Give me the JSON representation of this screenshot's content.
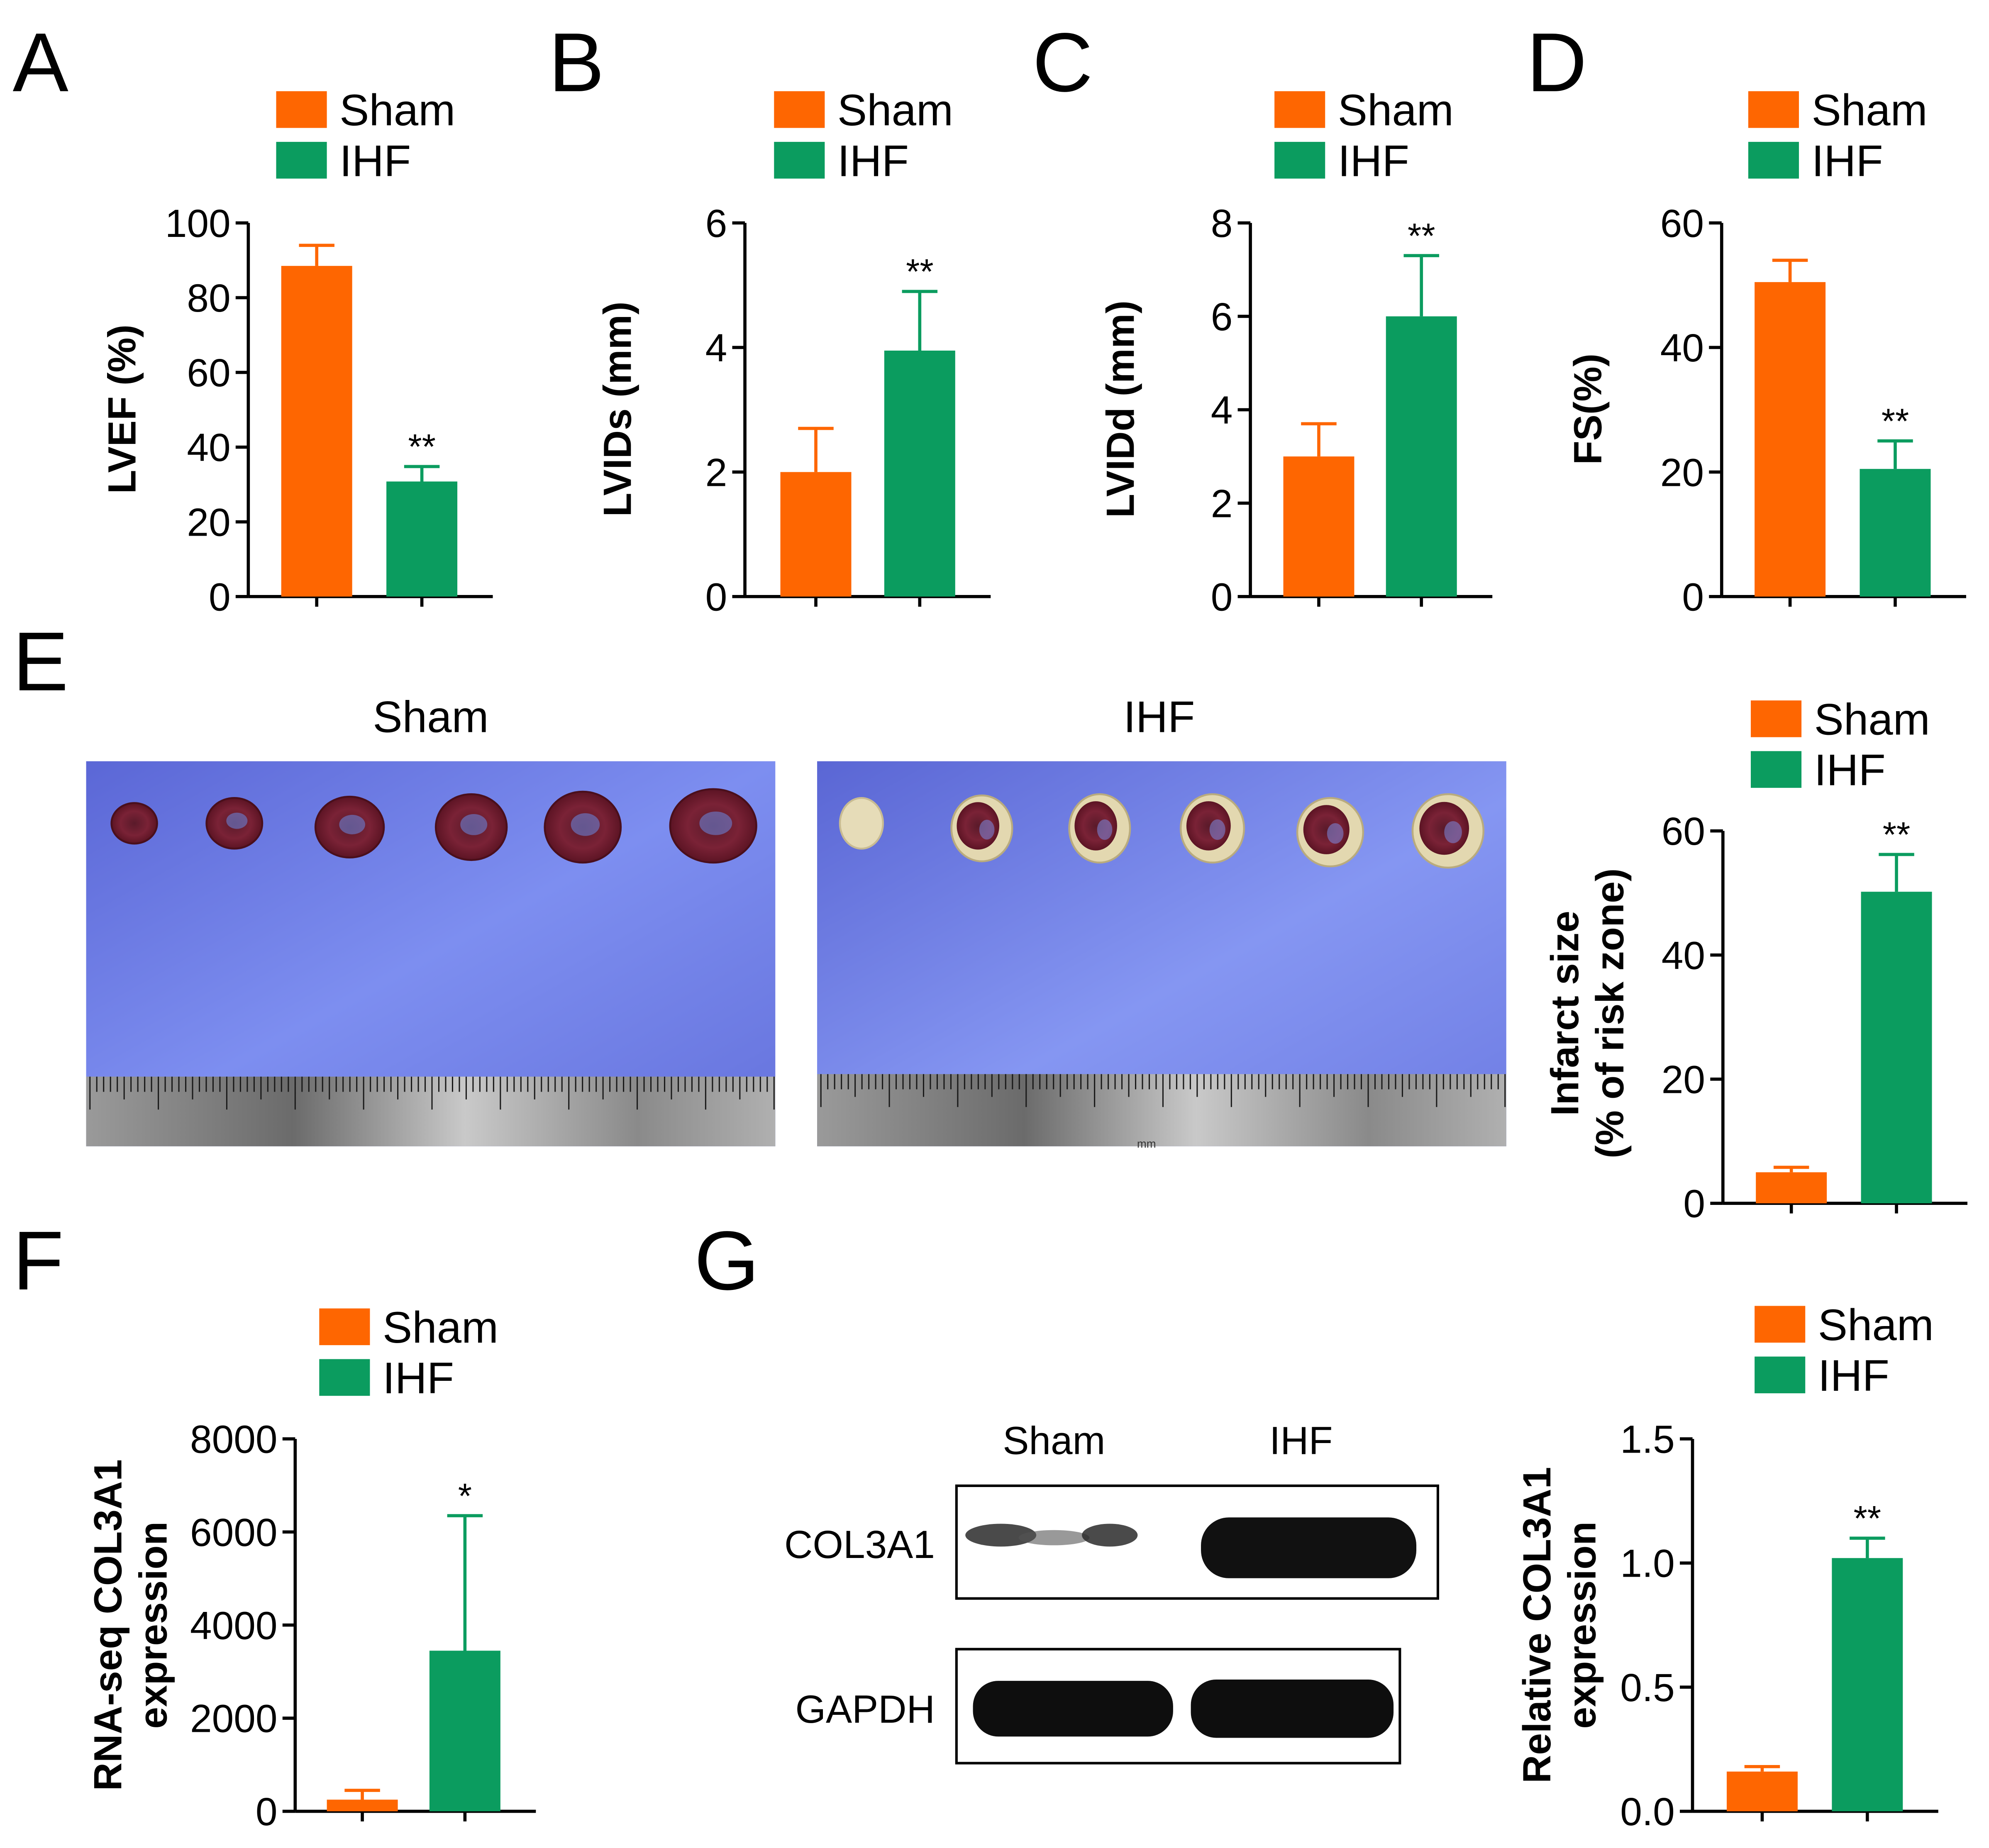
{
  "colors": {
    "sham": "#fe6601",
    "ihf": "#0b9c5f",
    "axis": "#000000"
  },
  "panels": {
    "A": "A",
    "B": "B",
    "C": "C",
    "D": "D",
    "E": "E",
    "F": "F",
    "G": "G"
  },
  "legend": {
    "sham": "Sham",
    "ihf": "IHF"
  },
  "photos": {
    "sham_title": "Sham",
    "ihf_title": "IHF",
    "ruler_mark": "mm"
  },
  "blot": {
    "col_sham": "Sham",
    "col_ihf": "IHF",
    "row1": "COL3A1",
    "row2": "GAPDH"
  },
  "chart_data": [
    {
      "id": "A",
      "type": "bar",
      "categories": [
        "Sham",
        "IHF"
      ],
      "values": [
        88.5,
        30.8
      ],
      "errors": [
        5.5,
        4.0
      ],
      "ylabel": "LVEF (%)",
      "ylim": [
        0,
        100
      ],
      "yticks": [
        "0",
        "20",
        "40",
        "60",
        "80",
        "100"
      ],
      "significance": [
        "",
        "**"
      ]
    },
    {
      "id": "B",
      "type": "bar",
      "categories": [
        "Sham",
        "IHF"
      ],
      "values": [
        2.0,
        3.95
      ],
      "errors": [
        0.7,
        0.95
      ],
      "ylabel": "LVIDs (mm)",
      "ylim": [
        0,
        6
      ],
      "yticks": [
        "0",
        "2",
        "4",
        "6"
      ],
      "significance": [
        "",
        "**"
      ]
    },
    {
      "id": "C",
      "type": "bar",
      "categories": [
        "Sham",
        "IHF"
      ],
      "values": [
        3.0,
        6.0
      ],
      "errors": [
        0.7,
        1.3
      ],
      "ylabel": "LVIDd (mm)",
      "ylim": [
        0,
        8
      ],
      "yticks": [
        "0",
        "2",
        "4",
        "6",
        "8"
      ],
      "significance": [
        "",
        "**"
      ]
    },
    {
      "id": "D",
      "type": "bar",
      "categories": [
        "Sham",
        "IHF"
      ],
      "values": [
        50.5,
        20.5
      ],
      "errors": [
        3.5,
        4.5
      ],
      "ylabel": "FS(%)",
      "ylim": [
        0,
        60
      ],
      "yticks": [
        "0",
        "20",
        "40",
        "60"
      ],
      "significance": [
        "",
        "**"
      ]
    },
    {
      "id": "E",
      "type": "bar",
      "categories": [
        "Sham",
        "IHF"
      ],
      "values": [
        5.0,
        50.2
      ],
      "errors": [
        0.8,
        6.0
      ],
      "ylabel": [
        "Infarct size",
        "(% of risk zone)"
      ],
      "ylim": [
        0,
        60
      ],
      "yticks": [
        "0",
        "20",
        "40",
        "60"
      ],
      "significance": [
        "",
        "**"
      ]
    },
    {
      "id": "F",
      "type": "bar",
      "categories": [
        "Sham",
        "IHF"
      ],
      "values": [
        250,
        3450
      ],
      "errors": [
        200,
        2900
      ],
      "ylabel": [
        "RNA-seq COL3A1",
        "expression"
      ],
      "ylim": [
        0,
        8000
      ],
      "yticks": [
        "0",
        "2000",
        "4000",
        "6000",
        "8000"
      ],
      "significance": [
        "",
        "*"
      ]
    },
    {
      "id": "G",
      "type": "bar",
      "categories": [
        "Sham",
        "IHF"
      ],
      "values": [
        0.16,
        1.02
      ],
      "errors": [
        0.02,
        0.08
      ],
      "ylabel": [
        "Relative COL3A1",
        "expression"
      ],
      "ylim": [
        0,
        1.5
      ],
      "yticks": [
        "0.0",
        "0.5",
        "1.0",
        "1.5"
      ],
      "significance": [
        "",
        "**"
      ]
    }
  ]
}
